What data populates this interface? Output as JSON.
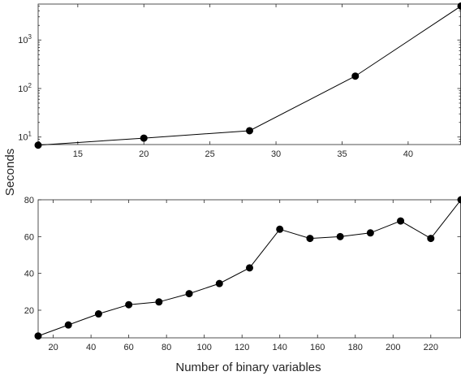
{
  "figure": {
    "ylabel": "Seconds",
    "xlabel": "Number of binary variables",
    "line_color": "#000000",
    "axis_color": "#262626"
  },
  "chart_data": [
    {
      "type": "line",
      "yscale": "log",
      "x": [
        12,
        20,
        28,
        36,
        44
      ],
      "values": [
        6.8,
        9.5,
        13.5,
        180,
        5000
      ],
      "xlim": [
        12,
        44
      ],
      "ylim": [
        7,
        5500
      ],
      "x_ticks": [
        15,
        20,
        25,
        30,
        35,
        40
      ],
      "x_tick_labels": [
        "15",
        "20",
        "25",
        "30",
        "35",
        "40"
      ],
      "y_ticks": [
        10,
        100,
        1000
      ],
      "y_tick_labels": [
        {
          "base": "10",
          "exp": "1"
        },
        {
          "base": "10",
          "exp": "2"
        },
        {
          "base": "10",
          "exp": "3"
        }
      ],
      "grid": false,
      "marker": "filled-circle"
    },
    {
      "type": "line",
      "yscale": "linear",
      "x": [
        12,
        28,
        44,
        60,
        76,
        92,
        108,
        124,
        140,
        156,
        172,
        188,
        204,
        220,
        236
      ],
      "values": [
        6,
        12,
        18,
        23,
        24.5,
        29,
        34.5,
        43,
        64,
        59,
        60,
        62,
        68.5,
        59,
        80
      ],
      "xlim": [
        12,
        236
      ],
      "ylim": [
        5,
        80
      ],
      "x_ticks": [
        20,
        40,
        60,
        80,
        100,
        120,
        140,
        160,
        180,
        200,
        220
      ],
      "x_tick_labels": [
        "20",
        "40",
        "60",
        "80",
        "100",
        "120",
        "140",
        "160",
        "180",
        "200",
        "220"
      ],
      "y_ticks": [
        20,
        40,
        60,
        80
      ],
      "y_tick_labels": [
        "20",
        "40",
        "60",
        "80"
      ],
      "grid": false,
      "marker": "filled-circle"
    }
  ]
}
